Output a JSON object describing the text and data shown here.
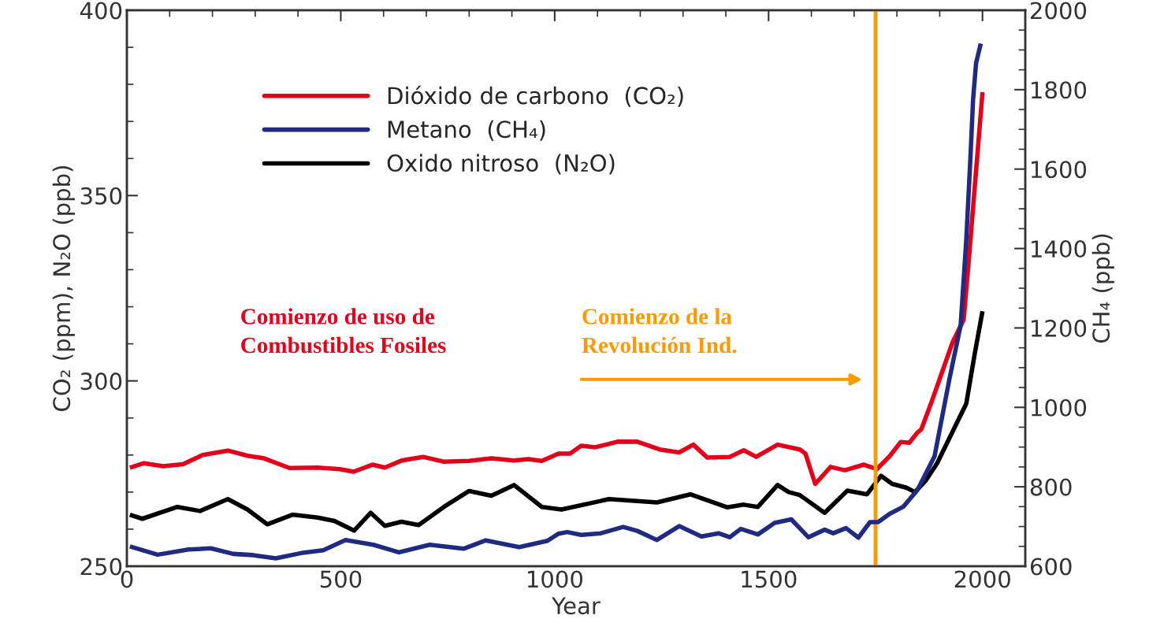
{
  "chart_data": {
    "type": "line",
    "xlabel": "Year",
    "ylabel": "CO₂ (ppm), N₂O (ppb)",
    "y2label": "CH₄ (ppb)",
    "xlim": [
      0,
      2100
    ],
    "xticks": [
      0,
      500,
      1000,
      1500,
      2000
    ],
    "ylim": [
      250,
      400
    ],
    "yticks": [
      250,
      300,
      350,
      400
    ],
    "y2lim": [
      600,
      2000
    ],
    "y2ticks": [
      600,
      800,
      1000,
      1200,
      1400,
      1600,
      1800,
      2000
    ],
    "grid": false,
    "legend": "top left",
    "marker": "none",
    "line_style": "solid",
    "series": [
      {
        "name": "Dióxido de carbono  (CO₂)",
        "color": "#e2001a",
        "x": [
          7,
          40,
          85,
          131,
          177,
          236,
          282,
          321,
          380,
          446,
          498,
          530,
          574,
          603,
          642,
          692,
          741,
          800,
          852,
          905,
          938,
          970,
          1009,
          1036,
          1062,
          1095,
          1147,
          1193,
          1245,
          1291,
          1324,
          1357,
          1409,
          1442,
          1471,
          1521,
          1573,
          1586,
          1609,
          1645,
          1678,
          1723,
          1753,
          1783,
          1809,
          1829,
          1848,
          1857,
          1884,
          1930,
          1956,
          1969,
          1985,
          2000
        ],
        "values": [
          276.6,
          277.8,
          277.0,
          277.5,
          280.0,
          281.2,
          279.8,
          279.1,
          276.5,
          276.6,
          276.2,
          275.5,
          277.4,
          276.6,
          278.5,
          279.5,
          278.2,
          278.4,
          279.1,
          278.5,
          278.9,
          278.4,
          280.4,
          280.4,
          282.5,
          282.1,
          283.6,
          283.6,
          281.5,
          280.7,
          282.8,
          279.3,
          279.5,
          281.3,
          279.5,
          282.8,
          281.5,
          280.4,
          272.2,
          276.8,
          275.9,
          277.4,
          276.2,
          279.7,
          283.5,
          283.3,
          286.1,
          286.9,
          295.3,
          310.4,
          316.5,
          334.0,
          356.7,
          377.9
        ]
      },
      {
        "name": "Metano  (CH₄)",
        "color": "#1f2a80",
        "axis": "y2",
        "x": [
          7,
          72,
          144,
          196,
          249,
          295,
          348,
          407,
          459,
          511,
          576,
          636,
          708,
          787,
          839,
          917,
          983,
          1009,
          1029,
          1062,
          1108,
          1160,
          1193,
          1239,
          1291,
          1343,
          1383,
          1409,
          1435,
          1475,
          1514,
          1553,
          1593,
          1631,
          1651,
          1681,
          1710,
          1737,
          1756,
          1783,
          1815,
          1848,
          1888,
          1923,
          1949,
          1962,
          1972,
          1978,
          1985,
          1996
        ],
        "values": [
          650,
          629,
          642,
          645,
          631,
          628,
          620,
          633,
          640,
          666,
          654,
          635,
          654,
          644,
          665,
          648,
          664,
          682,
          686,
          679,
          683,
          699,
          689,
          666,
          701,
          675,
          683,
          673,
          694,
          680,
          709,
          718,
          673,
          692,
          683,
          696,
          672,
          711,
          711,
          732,
          750,
          792,
          877,
          1073,
          1207,
          1420,
          1633,
          1775,
          1867,
          1916
        ]
      },
      {
        "name": "Oxido nitroso  (N₂O)",
        "color": "#000000",
        "x": [
          7,
          36,
          118,
          171,
          236,
          282,
          328,
          387,
          446,
          485,
          531,
          570,
          603,
          642,
          682,
          741,
          800,
          852,
          905,
          970,
          1016,
          1127,
          1239,
          1317,
          1403,
          1442,
          1475,
          1521,
          1547,
          1573,
          1631,
          1684,
          1730,
          1763,
          1789,
          1822,
          1842,
          1868,
          1894,
          1936,
          1962,
          1982,
          2000
        ],
        "values": [
          263.9,
          262.8,
          266.0,
          264.9,
          268.1,
          265.3,
          261.3,
          263.9,
          263.1,
          262.2,
          259.6,
          264.4,
          260.9,
          262.0,
          261.1,
          266.0,
          270.3,
          269.0,
          271.9,
          266.0,
          265.3,
          268.1,
          267.2,
          269.4,
          265.9,
          266.6,
          266.0,
          271.9,
          270.0,
          269.2,
          264.4,
          270.4,
          269.4,
          274.4,
          272.2,
          271.2,
          270.0,
          273.2,
          277.8,
          287.7,
          293.8,
          307.4,
          318.8
        ]
      }
    ],
    "ref_lines": [
      {
        "axis": "x",
        "value": 1750,
        "color": "#ff9900",
        "line_style": "solid"
      }
    ],
    "annotations": [
      "Comienzo de uso de\nCombustibles Fosiles",
      "Comienzo de la\nRevolución Ind."
    ]
  }
}
